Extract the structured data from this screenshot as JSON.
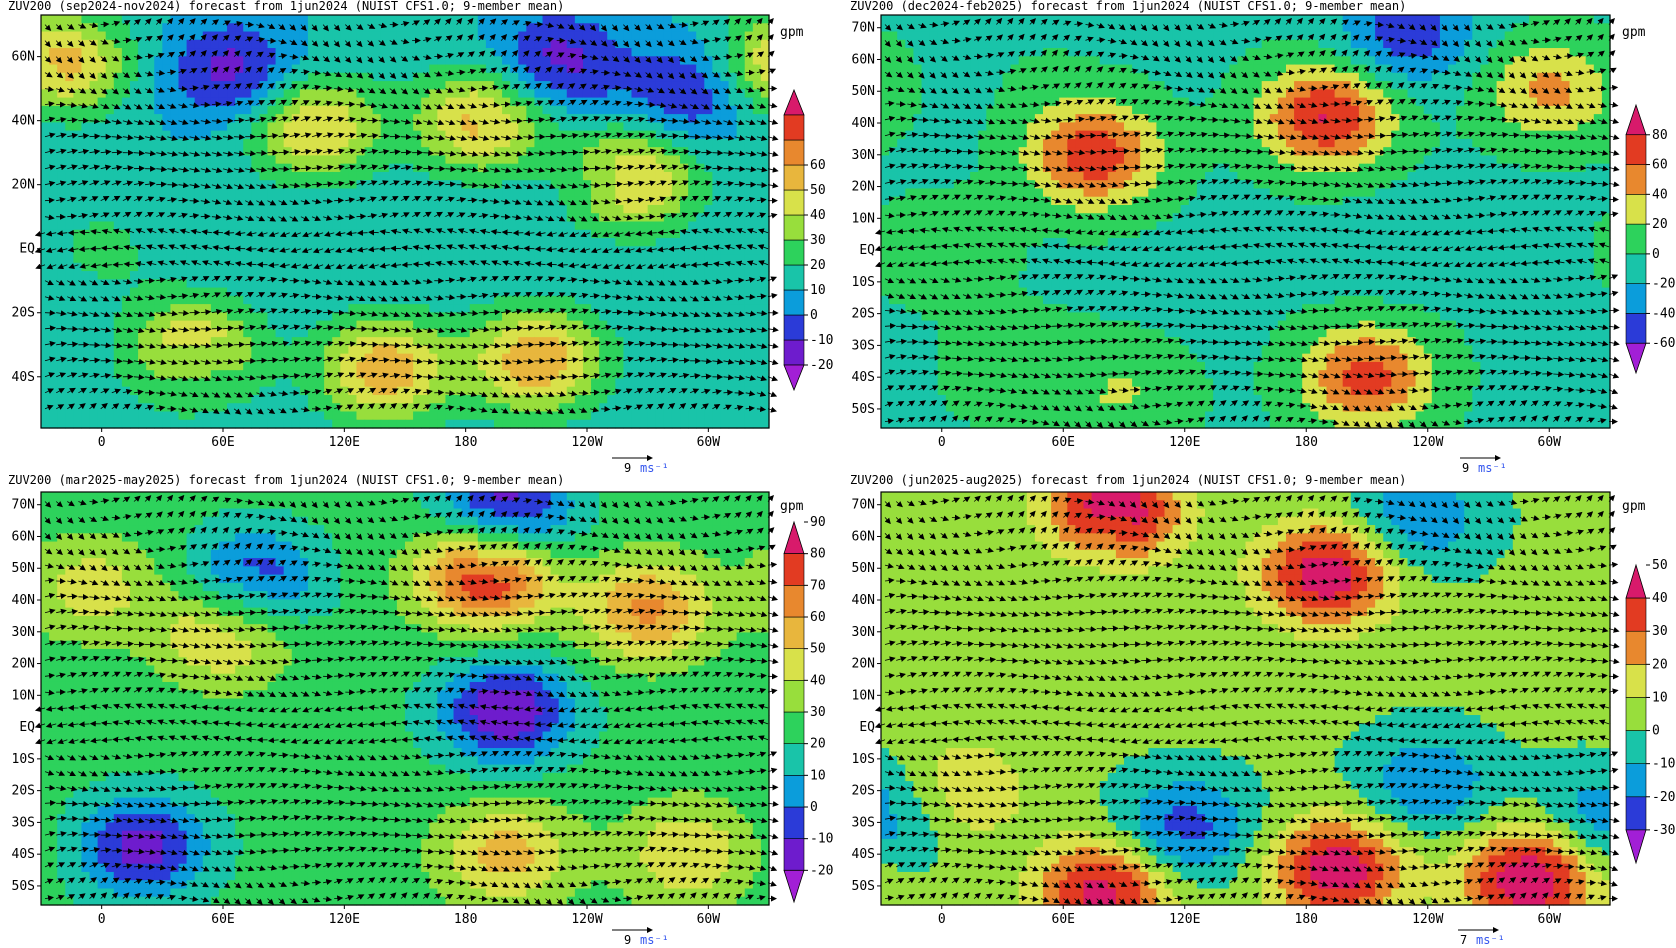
{
  "chart_data": [
    {
      "type": "heatmap",
      "title": "ZUV200 (sep2024-nov2024) forecast from 1jun2024 (NUIST CFS1.0; 9-member mean)",
      "units": "gpm",
      "lat_ticks": [
        "60N",
        "40N",
        "20N",
        "EQ",
        "20S",
        "40S"
      ],
      "lat_values": [
        60,
        40,
        20,
        0,
        -20,
        -40
      ],
      "lon_ticks": [
        "0",
        "60E",
        "120E",
        "180",
        "120W",
        "60W"
      ],
      "lon_values": [
        0,
        60,
        120,
        180,
        240,
        300
      ],
      "colorbar_ticks": [
        "-20",
        "-10",
        "0",
        "10",
        "20",
        "30",
        "40",
        "50",
        "60"
      ],
      "colorbar_colors": [
        "#a21fd6",
        "#6e1ccd",
        "#2b3bd8",
        "#0b9ddb",
        "#19c4a9",
        "#2dd25c",
        "#98de3c",
        "#d8e14a",
        "#e8b63d",
        "#e8882e",
        "#e23b22",
        "#d81a6b"
      ],
      "contour_interval": 10,
      "vector_reference": {
        "value": "9",
        "unit": "ms⁻¹"
      },
      "features": [
        {
          "lon": 340,
          "lat": 58,
          "value": 55
        },
        {
          "lon": 65,
          "lat": 55,
          "value": -15
        },
        {
          "lon": 225,
          "lat": 58,
          "value": -15
        },
        {
          "lon": 290,
          "lat": 48,
          "value": -10
        },
        {
          "lon": 105,
          "lat": 38,
          "value": 52
        },
        {
          "lon": 188,
          "lat": 40,
          "value": 55
        },
        {
          "lon": 262,
          "lat": 22,
          "value": 55
        },
        {
          "lon": 225,
          "lat": 18,
          "value": 10
        },
        {
          "lon": 0,
          "lat": 0,
          "value": 22
        },
        {
          "lon": 140,
          "lat": -38,
          "value": 58
        },
        {
          "lon": 215,
          "lat": -35,
          "value": 60
        },
        {
          "lon": 45,
          "lat": -32,
          "value": 52
        },
        {
          "lon": -5,
          "lat": -45,
          "value": 12
        },
        {
          "lon": 55,
          "lat": -45,
          "value": 12
        }
      ]
    },
    {
      "type": "heatmap",
      "title": "ZUV200 (dec2024-feb2025) forecast from 1jun2024 (NUIST CFS1.0; 9-member mean)",
      "units": "gpm",
      "lat_ticks": [
        "70N",
        "60N",
        "50N",
        "40N",
        "30N",
        "20N",
        "10N",
        "EQ",
        "10S",
        "20S",
        "30S",
        "40S",
        "50S"
      ],
      "lat_values": [
        70,
        60,
        50,
        40,
        30,
        20,
        10,
        0,
        -10,
        -20,
        -30,
        -40,
        -50
      ],
      "lon_ticks": [
        "0",
        "60E",
        "120E",
        "180",
        "120W",
        "60W"
      ],
      "lon_values": [
        0,
        60,
        120,
        180,
        240,
        300
      ],
      "colorbar_ticks": [
        "-60",
        "-40",
        "-20",
        "0",
        "20",
        "40",
        "60",
        "80"
      ],
      "colorbar_colors": [
        "#a21fd6",
        "#2b3bd8",
        "#0b9ddb",
        "#19c4a9",
        "#2dd25c",
        "#d8e14a",
        "#e8882e",
        "#e23b22",
        "#d81a6b"
      ],
      "contour_interval": 20,
      "vector_reference": {
        "value": "9",
        "unit": "ms⁻¹"
      },
      "features": [
        {
          "lon": 230,
          "lat": 68,
          "value": -55
        },
        {
          "lon": 50,
          "lat": 55,
          "value": 0
        },
        {
          "lon": 190,
          "lat": 42,
          "value": 82
        },
        {
          "lon": 75,
          "lat": 30,
          "value": 75
        },
        {
          "lon": 300,
          "lat": 50,
          "value": 45
        },
        {
          "lon": 215,
          "lat": -2,
          "value": -10
        },
        {
          "lon": 0,
          "lat": 0,
          "value": 15
        },
        {
          "lon": 40,
          "lat": -38,
          "value": 20
        },
        {
          "lon": 210,
          "lat": -40,
          "value": 70
        },
        {
          "lon": 90,
          "lat": -45,
          "value": 20
        }
      ]
    },
    {
      "type": "heatmap",
      "title": "ZUV200 (mar2025-may2025) forecast from 1jun2024 (NUIST CFS1.0; 9-member mean)",
      "units": "gpm",
      "lat_ticks": [
        "70N",
        "60N",
        "50N",
        "40N",
        "30N",
        "20N",
        "10N",
        "EQ",
        "10S",
        "20S",
        "30S",
        "40S",
        "50S"
      ],
      "lat_values": [
        70,
        60,
        50,
        40,
        30,
        20,
        10,
        0,
        -10,
        -20,
        -30,
        -40,
        -50
      ],
      "lon_ticks": [
        "0",
        "60E",
        "120E",
        "180",
        "120W",
        "60W"
      ],
      "lon_values": [
        0,
        60,
        120,
        180,
        240,
        300
      ],
      "colorbar_ticks": [
        "-20",
        "-10",
        "0",
        "10",
        "20",
        "30",
        "40",
        "50",
        "60",
        "70",
        "80",
        "90"
      ],
      "colorbar_colors": [
        "#a21fd6",
        "#6e1ccd",
        "#2b3bd8",
        "#0b9ddb",
        "#19c4a9",
        "#2dd25c",
        "#98de3c",
        "#d8e14a",
        "#e8b63d",
        "#e8882e",
        "#e23b22",
        "#d81a6b"
      ],
      "contour_interval": 10,
      "vector_reference": {
        "value": "9",
        "unit": "ms⁻¹"
      },
      "features": [
        {
          "lon": 200,
          "lat": 68,
          "value": -20
        },
        {
          "lon": 75,
          "lat": 46,
          "value": -10
        },
        {
          "lon": 190,
          "lat": 48,
          "value": 85
        },
        {
          "lon": 270,
          "lat": 37,
          "value": 62
        },
        {
          "lon": -5,
          "lat": 44,
          "value": 45
        },
        {
          "lon": 60,
          "lat": 30,
          "value": 55
        },
        {
          "lon": 200,
          "lat": 5,
          "value": -20
        },
        {
          "lon": 20,
          "lat": -38,
          "value": -15
        },
        {
          "lon": 200,
          "lat": -40,
          "value": 55
        },
        {
          "lon": 290,
          "lat": -40,
          "value": 50
        }
      ]
    },
    {
      "type": "heatmap",
      "title": "ZUV200 (jun2025-aug2025) forecast from 1jun2024 (NUIST CFS1.0; 9-member mean)",
      "units": "gpm",
      "lat_ticks": [
        "70N",
        "60N",
        "50N",
        "40N",
        "30N",
        "20N",
        "10N",
        "EQ",
        "10S",
        "20S",
        "30S",
        "40S",
        "50S"
      ],
      "lat_values": [
        70,
        60,
        50,
        40,
        30,
        20,
        10,
        0,
        -10,
        -20,
        -30,
        -40,
        -50
      ],
      "lon_ticks": [
        "0",
        "60E",
        "120E",
        "180",
        "120W",
        "60W"
      ],
      "lon_values": [
        0,
        60,
        120,
        180,
        240,
        300
      ],
      "colorbar_ticks": [
        "-30",
        "-20",
        "-10",
        "0",
        "10",
        "20",
        "30",
        "40",
        "50"
      ],
      "colorbar_colors": [
        "#a21fd6",
        "#2b3bd8",
        "#0b9ddb",
        "#19c4a9",
        "#98de3c",
        "#d8e14a",
        "#e8882e",
        "#e23b22",
        "#d81a6b"
      ],
      "contour_interval": 10,
      "vector_reference": {
        "value": "7",
        "unit": "ms⁻¹"
      },
      "features": [
        {
          "lon": 85,
          "lat": 68,
          "value": 50
        },
        {
          "lon": 235,
          "lat": 66,
          "value": -20
        },
        {
          "lon": 190,
          "lat": 48,
          "value": 48
        },
        {
          "lon": 75,
          "lat": 48,
          "value": 0
        },
        {
          "lon": 240,
          "lat": -18,
          "value": -20
        },
        {
          "lon": 195,
          "lat": -45,
          "value": 48
        },
        {
          "lon": 290,
          "lat": -48,
          "value": 50
        },
        {
          "lon": 80,
          "lat": -52,
          "value": 45
        },
        {
          "lon": 120,
          "lat": -32,
          "value": -25
        },
        {
          "lon": 10,
          "lat": -20,
          "value": 20
        },
        {
          "lon": 330,
          "lat": -28,
          "value": -20
        }
      ]
    }
  ]
}
